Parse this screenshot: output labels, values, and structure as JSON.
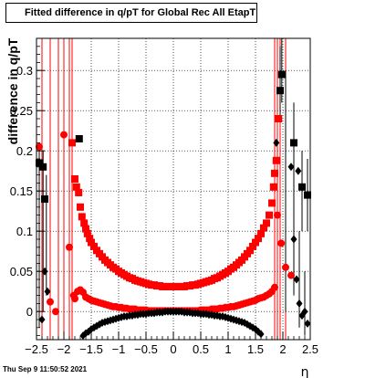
{
  "title": "Fitted difference in q/pT for Global Rec All EtapT",
  "footer": "Thu Sep  9 11:50:52 2021",
  "chart_data": {
    "type": "scatter",
    "title": "Fitted difference in q/pT for Global Rec All EtapT",
    "xlabel": "η",
    "ylabel": "difference in q/pT",
    "xlim": [
      -2.5,
      2.5
    ],
    "ylim": [
      -0.035,
      0.34
    ],
    "xticks": [
      -2.5,
      -2,
      -1.5,
      -1,
      -0.5,
      0,
      0.5,
      1,
      1.5,
      2,
      2.5
    ],
    "xtick_labels": [
      "−2.5",
      "−2",
      "−1.5",
      "−1",
      "−0.5",
      "0",
      "0.5",
      "1",
      "1.5",
      "2",
      "2.5"
    ],
    "yticks": [
      0,
      0.05,
      0.1,
      0.15,
      0.2,
      0.25,
      0.3
    ],
    "ytick_labels": [
      "0",
      "0.05",
      "0.1",
      "0.15",
      "0.2",
      "0.25",
      "0.3"
    ],
    "grid": true,
    "colors": {
      "red": "#ff0000",
      "black": "#000000"
    },
    "series": [
      {
        "color": "#ff0000",
        "marker": "square",
        "points": [
          [
            -1.85,
            0.21
          ],
          [
            -1.8,
            0.165
          ],
          [
            -1.77,
            0.155
          ],
          [
            -1.73,
            0.148
          ],
          [
            -1.7,
            0.13
          ],
          [
            -1.67,
            0.118
          ],
          [
            -1.63,
            0.11
          ],
          [
            -1.6,
            0.103
          ],
          [
            -1.57,
            0.097
          ],
          [
            -1.53,
            0.091
          ],
          [
            -1.5,
            0.086
          ],
          [
            -1.45,
            0.081
          ],
          [
            -1.4,
            0.076
          ],
          [
            -1.35,
            0.072
          ],
          [
            -1.3,
            0.068
          ],
          [
            -1.25,
            0.064
          ],
          [
            -1.2,
            0.061
          ],
          [
            -1.15,
            0.058
          ],
          [
            -1.1,
            0.055
          ],
          [
            -1.05,
            0.053
          ],
          [
            -1.0,
            0.05
          ],
          [
            -0.95,
            0.048
          ],
          [
            -0.9,
            0.046
          ],
          [
            -0.85,
            0.044
          ],
          [
            -0.8,
            0.042
          ],
          [
            -0.75,
            0.041
          ],
          [
            -0.7,
            0.039
          ],
          [
            -0.65,
            0.038
          ],
          [
            -0.6,
            0.037
          ],
          [
            -0.55,
            0.036
          ],
          [
            -0.5,
            0.035
          ],
          [
            -0.45,
            0.034
          ],
          [
            -0.4,
            0.033
          ],
          [
            -0.35,
            0.033
          ],
          [
            -0.3,
            0.032
          ],
          [
            -0.25,
            0.032
          ],
          [
            -0.2,
            0.031
          ],
          [
            -0.15,
            0.031
          ],
          [
            -0.1,
            0.031
          ],
          [
            -0.05,
            0.031
          ],
          [
            0.0,
            0.031
          ],
          [
            0.05,
            0.031
          ],
          [
            0.1,
            0.031
          ],
          [
            0.15,
            0.031
          ],
          [
            0.2,
            0.031
          ],
          [
            0.25,
            0.032
          ],
          [
            0.3,
            0.032
          ],
          [
            0.35,
            0.033
          ],
          [
            0.4,
            0.033
          ],
          [
            0.45,
            0.034
          ],
          [
            0.5,
            0.035
          ],
          [
            0.55,
            0.036
          ],
          [
            0.6,
            0.037
          ],
          [
            0.65,
            0.038
          ],
          [
            0.7,
            0.039
          ],
          [
            0.75,
            0.041
          ],
          [
            0.8,
            0.042
          ],
          [
            0.85,
            0.044
          ],
          [
            0.9,
            0.046
          ],
          [
            0.95,
            0.048
          ],
          [
            1.0,
            0.05
          ],
          [
            1.05,
            0.053
          ],
          [
            1.1,
            0.055
          ],
          [
            1.15,
            0.058
          ],
          [
            1.2,
            0.061
          ],
          [
            1.25,
            0.064
          ],
          [
            1.3,
            0.068
          ],
          [
            1.35,
            0.072
          ],
          [
            1.4,
            0.076
          ],
          [
            1.45,
            0.081
          ],
          [
            1.5,
            0.086
          ],
          [
            1.55,
            0.091
          ],
          [
            1.6,
            0.097
          ],
          [
            1.65,
            0.104
          ],
          [
            1.7,
            0.11
          ],
          [
            1.75,
            0.12
          ],
          [
            1.8,
            0.135
          ],
          [
            1.83,
            0.155
          ],
          [
            1.85,
            0.172
          ],
          [
            1.88,
            0.188
          ],
          [
            1.92,
            0.24
          ]
        ]
      },
      {
        "color": "#ff0000",
        "marker": "circle",
        "points": [
          [
            -2.45,
            0.205
          ],
          [
            -2.25,
            0.012
          ],
          [
            -2.15,
            0.0
          ],
          [
            -2.0,
            0.22
          ],
          [
            -1.9,
            0.08
          ],
          [
            -1.82,
            0.02
          ],
          [
            -1.8,
            0.016
          ],
          [
            -1.75,
            0.025
          ],
          [
            -1.7,
            0.027
          ],
          [
            -1.65,
            0.024
          ],
          [
            -1.6,
            0.018
          ],
          [
            -1.55,
            0.016
          ],
          [
            -1.5,
            0.014
          ],
          [
            -1.45,
            0.013
          ],
          [
            -1.4,
            0.012
          ],
          [
            -1.35,
            0.011
          ],
          [
            -1.3,
            0.01
          ],
          [
            -1.25,
            0.009
          ],
          [
            -1.2,
            0.008
          ],
          [
            -1.15,
            0.007
          ],
          [
            -1.1,
            0.006
          ],
          [
            -1.05,
            0.006
          ],
          [
            -1.0,
            0.005
          ],
          [
            -0.95,
            0.005
          ],
          [
            -0.9,
            0.004
          ],
          [
            -0.85,
            0.004
          ],
          [
            -0.8,
            0.003
          ],
          [
            -0.75,
            0.003
          ],
          [
            -0.7,
            0.003
          ],
          [
            -0.65,
            0.002
          ],
          [
            -0.6,
            0.002
          ],
          [
            -0.55,
            0.002
          ],
          [
            -0.5,
            0.002
          ],
          [
            -0.45,
            0.001
          ],
          [
            -0.4,
            0.001
          ],
          [
            -0.35,
            0.001
          ],
          [
            -0.3,
            0.001
          ],
          [
            -0.25,
            0.001
          ],
          [
            -0.2,
            0.001
          ],
          [
            -0.15,
            0.001
          ],
          [
            -0.1,
            0.001
          ],
          [
            -0.05,
            0.001
          ],
          [
            0.0,
            0.001
          ],
          [
            0.05,
            0.001
          ],
          [
            0.1,
            0.001
          ],
          [
            0.15,
            0.001
          ],
          [
            0.2,
            0.001
          ],
          [
            0.25,
            0.001
          ],
          [
            0.3,
            0.001
          ],
          [
            0.35,
            0.001
          ],
          [
            0.4,
            0.001
          ],
          [
            0.45,
            0.001
          ],
          [
            0.5,
            0.002
          ],
          [
            0.55,
            0.002
          ],
          [
            0.6,
            0.002
          ],
          [
            0.65,
            0.002
          ],
          [
            0.7,
            0.003
          ],
          [
            0.75,
            0.003
          ],
          [
            0.8,
            0.003
          ],
          [
            0.85,
            0.004
          ],
          [
            0.9,
            0.004
          ],
          [
            0.95,
            0.005
          ],
          [
            1.0,
            0.005
          ],
          [
            1.05,
            0.006
          ],
          [
            1.1,
            0.006
          ],
          [
            1.15,
            0.007
          ],
          [
            1.2,
            0.008
          ],
          [
            1.25,
            0.009
          ],
          [
            1.3,
            0.01
          ],
          [
            1.35,
            0.011
          ],
          [
            1.4,
            0.012
          ],
          [
            1.45,
            0.013
          ],
          [
            1.5,
            0.014
          ],
          [
            1.55,
            0.016
          ],
          [
            1.6,
            0.017
          ],
          [
            1.65,
            0.018
          ],
          [
            1.7,
            0.02
          ],
          [
            1.75,
            0.022
          ],
          [
            1.8,
            0.025
          ],
          [
            1.85,
            0.03
          ],
          [
            1.9,
            0.12
          ],
          [
            1.97,
            0.085
          ],
          [
            2.05,
            0.055
          ],
          [
            2.15,
            0.045
          ]
        ]
      },
      {
        "color": "#000000",
        "marker": "square",
        "points": [
          [
            -2.45,
            0.185
          ],
          [
            -2.38,
            0.18
          ],
          [
            -2.35,
            0.14
          ],
          [
            -1.72,
            0.215
          ],
          [
            1.95,
            0.275
          ],
          [
            1.98,
            0.295
          ],
          [
            2.2,
            0.21
          ],
          [
            2.35,
            0.155
          ],
          [
            2.45,
            0.145
          ]
        ]
      },
      {
        "color": "#000000",
        "marker": "diamond",
        "points": [
          [
            -2.35,
            0.05
          ],
          [
            -2.4,
            -0.01
          ],
          [
            -2.3,
            0.025
          ],
          [
            -1.65,
            -0.03
          ],
          [
            -1.6,
            -0.027
          ],
          [
            -1.55,
            -0.025
          ],
          [
            -1.5,
            -0.022
          ],
          [
            -1.45,
            -0.02
          ],
          [
            -1.4,
            -0.018
          ],
          [
            -1.35,
            -0.016
          ],
          [
            -1.3,
            -0.014
          ],
          [
            -1.25,
            -0.013
          ],
          [
            -1.2,
            -0.012
          ],
          [
            -1.15,
            -0.011
          ],
          [
            -1.1,
            -0.01
          ],
          [
            -1.05,
            -0.009
          ],
          [
            -1.0,
            -0.008
          ],
          [
            -0.95,
            -0.007
          ],
          [
            -0.9,
            -0.006
          ],
          [
            -0.85,
            -0.006
          ],
          [
            -0.8,
            -0.005
          ],
          [
            -0.75,
            -0.005
          ],
          [
            -0.7,
            -0.004
          ],
          [
            -0.65,
            -0.004
          ],
          [
            -0.6,
            -0.003
          ],
          [
            -0.55,
            -0.003
          ],
          [
            -0.5,
            -0.003
          ],
          [
            -0.45,
            -0.002
          ],
          [
            -0.4,
            -0.002
          ],
          [
            -0.35,
            -0.002
          ],
          [
            -0.3,
            -0.001
          ],
          [
            -0.25,
            -0.001
          ],
          [
            -0.2,
            -0.001
          ],
          [
            -0.15,
            0.0
          ],
          [
            -0.1,
            0.0
          ],
          [
            -0.05,
            0.0
          ],
          [
            0.0,
            0.0
          ],
          [
            0.05,
            0.0
          ],
          [
            0.1,
            0.0
          ],
          [
            0.15,
            0.0
          ],
          [
            0.2,
            -0.001
          ],
          [
            0.25,
            -0.001
          ],
          [
            0.3,
            -0.001
          ],
          [
            0.35,
            -0.002
          ],
          [
            0.4,
            -0.002
          ],
          [
            0.45,
            -0.002
          ],
          [
            0.5,
            -0.003
          ],
          [
            0.55,
            -0.003
          ],
          [
            0.6,
            -0.003
          ],
          [
            0.65,
            -0.004
          ],
          [
            0.7,
            -0.004
          ],
          [
            0.75,
            -0.005
          ],
          [
            0.8,
            -0.005
          ],
          [
            0.85,
            -0.006
          ],
          [
            0.9,
            -0.006
          ],
          [
            0.95,
            -0.007
          ],
          [
            1.0,
            -0.008
          ],
          [
            1.05,
            -0.009
          ],
          [
            1.1,
            -0.01
          ],
          [
            1.15,
            -0.011
          ],
          [
            1.2,
            -0.012
          ],
          [
            1.25,
            -0.013
          ],
          [
            1.3,
            -0.014
          ],
          [
            1.35,
            -0.016
          ],
          [
            1.4,
            -0.018
          ],
          [
            1.45,
            -0.02
          ],
          [
            1.5,
            -0.022
          ],
          [
            1.55,
            -0.025
          ],
          [
            1.6,
            -0.028
          ],
          [
            1.88,
            0.21
          ],
          [
            2.15,
            0.18
          ],
          [
            2.2,
            0.09
          ],
          [
            2.25,
            0.04
          ],
          [
            2.3,
            0.01
          ],
          [
            2.35,
            -0.005
          ],
          [
            2.4,
            0.0
          ],
          [
            2.45,
            -0.015
          ],
          [
            2.28,
            0.175
          ]
        ]
      }
    ],
    "red_error_bars_x": [
      -2.4,
      -2.25,
      -2.1,
      -2.0,
      -1.9,
      -1.85,
      1.85,
      1.9,
      1.95,
      2.05
    ],
    "black_error_bars": [
      [
        -2.45,
        -0.02,
        0.21
      ],
      [
        -2.38,
        0.0,
        0.2
      ],
      [
        -2.32,
        0.02,
        0.17
      ],
      [
        1.95,
        0.24,
        0.33
      ],
      [
        1.98,
        0.26,
        0.34
      ],
      [
        2.05,
        0.0,
        0.3
      ],
      [
        2.2,
        0.02,
        0.26
      ],
      [
        2.35,
        0.1,
        0.2
      ],
      [
        2.45,
        0.1,
        0.19
      ],
      [
        2.3,
        -0.02,
        0.1
      ],
      [
        2.4,
        -0.03,
        0.05
      ]
    ]
  }
}
